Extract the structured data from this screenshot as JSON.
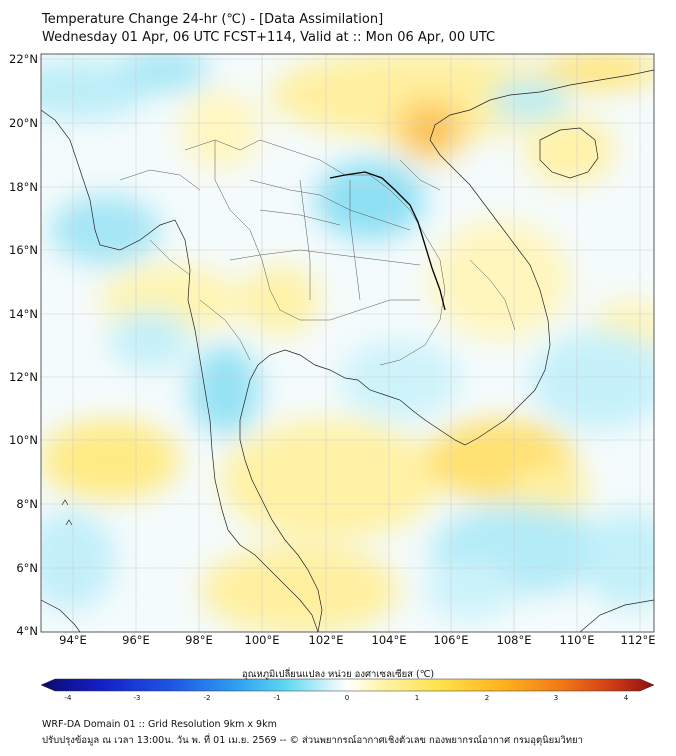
{
  "title_line1": "Temperature Change 24-hr (℃) - [Data Assimilation]",
  "title_line2": "Wednesday 01 Apr, 06 UTC FCST+114, Valid at :: Mon 06 Apr, 00 UTC",
  "lat_labels": [
    "22°N",
    "20°N",
    "18°N",
    "16°N",
    "14°N",
    "12°N",
    "10°N",
    "8°N",
    "6°N",
    "4°N"
  ],
  "lon_labels": [
    "94°E",
    "96°E",
    "98°E",
    "100°E",
    "102°E",
    "104°E",
    "106°E",
    "108°E",
    "110°E",
    "112°E"
  ],
  "colorbar": {
    "title": "อุณหภูมิเปลี่ยนแปลง หน่วย องศาเซลเซียส (℃)",
    "ticks": [
      "-4",
      "-3",
      "-2",
      "-1",
      "0",
      "1",
      "2",
      "3",
      "4"
    ],
    "colors": [
      "#0a0a6e",
      "#1520c8",
      "#1e5ae6",
      "#2fa0f0",
      "#5fd8f0",
      "#bdf0f8",
      "#ffffff",
      "#fff6b0",
      "#ffe14a",
      "#ffb41e",
      "#f07818",
      "#d23c14",
      "#8c0f0f"
    ]
  },
  "footer_line1": "WRF-DA Domain 01 :: Grid Resolution 9km x 9km",
  "footer_line2": "ปรับปรุงข้อมูล ณ เวลา 13:00น. วัน พ. ที่ 01 เม.ย. 2569 -- © ส่วนพยากรณ์อากาศเชิงตัวเลข กองพยากรณ์อากาศ กรมอุตุนิยมวิทยา"
}
